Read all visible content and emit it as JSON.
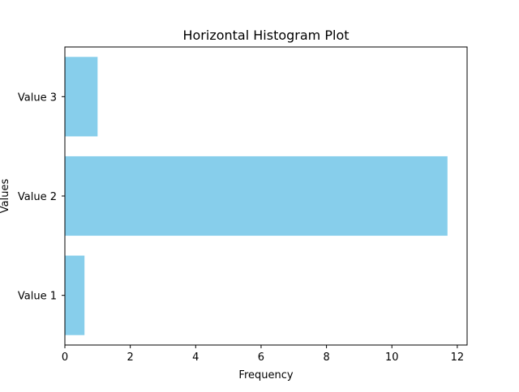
{
  "chart_data": {
    "type": "bar",
    "orientation": "horizontal",
    "title": "Horizontal Histogram Plot",
    "xlabel": "Frequency",
    "ylabel": "Values",
    "categories": [
      "Value 1",
      "Value 2",
      "Value 3"
    ],
    "values": [
      0.6,
      11.7,
      1.0
    ],
    "xlim": [
      0,
      12.3
    ],
    "xticks": [
      0,
      2,
      4,
      6,
      8,
      10,
      12
    ],
    "grid": false,
    "legend": "none",
    "bar_color": "#87ceeb"
  }
}
